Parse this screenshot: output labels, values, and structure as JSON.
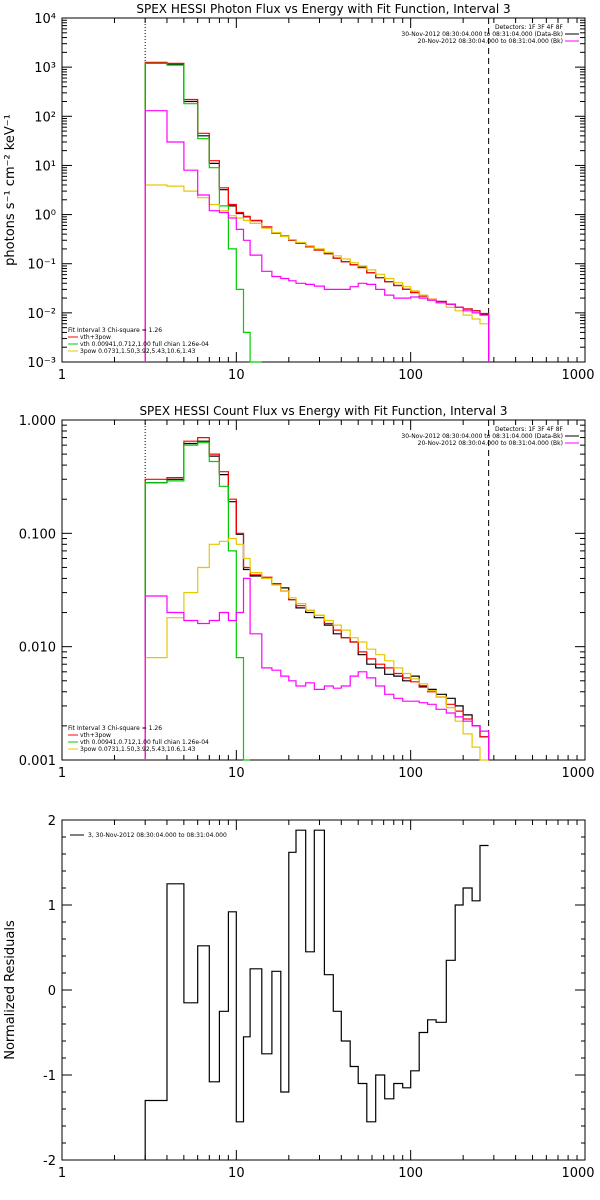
{
  "chart_data": [
    {
      "type": "line",
      "title": "SPEX HESSI Photon Flux vs Energy with Fit Function, Interval 3",
      "xlabel": "",
      "ylabel": "photons s⁻¹ cm⁻² keV⁻¹",
      "xscale": "log",
      "yscale": "log",
      "xlim": [
        1,
        1000
      ],
      "ylim": [
        0.001,
        10000
      ],
      "xticks": [
        1,
        10,
        100,
        1000
      ],
      "xtick_labels": [
        "1",
        "10",
        "100",
        "1000"
      ],
      "yticks": [
        0.001,
        0.01,
        0.1,
        1,
        10,
        100,
        1000,
        10000
      ],
      "ytick_labels": [
        "10⁻³",
        "10⁻²",
        "10⁻¹",
        "10⁰",
        "10¹",
        "10²",
        "10³",
        "10⁴"
      ],
      "vlines": [
        {
          "x": 3,
          "style": "dotted"
        },
        {
          "x": 280,
          "style": "dashed"
        }
      ],
      "legend_topright": [
        "Detectors: 1F 3F 4F 8F",
        "30-Nov-2012 08:30:04.000 to 08:31:04.000 (Data-Bk)",
        "20-Nov-2012 08:30:04.000 to 08:31:04.000 (Bk)"
      ],
      "legend_topright_colors": [
        "",
        "#000000",
        "#ff00ff"
      ],
      "legend_bottomleft": [
        "Fit Interval 3   Chi-square = 1.26",
        "vth+3pow",
        "vth 0.00941,0.712,1.00  full chian 1.26e-04",
        "3pow 0.0731,1.50,3.92,5.43,10.6,1.43"
      ],
      "legend_bottomleft_colors": [
        "",
        "#ff0000",
        "#00cc00",
        "#e6c800"
      ],
      "series": [
        {
          "color": "#000000",
          "x": [
            3,
            4,
            5,
            6,
            7,
            8,
            9,
            10,
            11,
            12,
            14,
            16,
            18,
            20,
            22,
            25,
            28,
            32,
            36,
            40,
            45,
            50,
            56,
            63,
            71,
            80,
            90,
            100,
            112,
            125,
            140,
            160,
            180,
            200,
            225,
            250,
            280
          ],
          "y": [
            1200,
            1150,
            200,
            40,
            11,
            3.2,
            1.5,
            1.05,
            0.9,
            0.75,
            0.55,
            0.42,
            0.36,
            0.3,
            0.26,
            0.22,
            0.19,
            0.16,
            0.13,
            0.11,
            0.095,
            0.085,
            0.065,
            0.052,
            0.043,
            0.036,
            0.03,
            0.026,
            0.022,
            0.019,
            0.017,
            0.015,
            0.013,
            0.012,
            0.011,
            0.0095,
            null
          ]
        },
        {
          "color": "#ff0000",
          "x": [
            3,
            4,
            5,
            6,
            7,
            8,
            9,
            10,
            11,
            12,
            14,
            16,
            18,
            20,
            22,
            25,
            28,
            32,
            36,
            40,
            45,
            50,
            56,
            63,
            71,
            80,
            90,
            100,
            112,
            125,
            140,
            160,
            180,
            200,
            225,
            250,
            280
          ],
          "y": [
            1250,
            1200,
            220,
            45,
            12.5,
            3.5,
            1.6,
            1.1,
            0.92,
            0.76,
            0.56,
            0.43,
            0.37,
            0.3,
            0.26,
            0.22,
            0.19,
            0.16,
            0.13,
            0.11,
            0.095,
            0.083,
            0.065,
            0.052,
            0.043,
            0.036,
            0.03,
            0.026,
            0.022,
            0.019,
            0.017,
            0.015,
            0.013,
            0.012,
            0.011,
            0.0097,
            null
          ]
        },
        {
          "color": "#00cc00",
          "x": [
            3,
            4,
            5,
            6,
            7,
            8,
            9,
            10,
            11,
            12,
            14
          ],
          "y": [
            1200,
            1100,
            180,
            35,
            9,
            1.5,
            0.2,
            0.03,
            0.004,
            0.0009,
            null
          ]
        },
        {
          "color": "#e6c800",
          "x": [
            3,
            4,
            5,
            6,
            7,
            8,
            9,
            10,
            11,
            12,
            14,
            16,
            18,
            20,
            22,
            25,
            28,
            32,
            36,
            40,
            45,
            50,
            56,
            63,
            71,
            80,
            90,
            100,
            112,
            125,
            140,
            160,
            180,
            200,
            225,
            250,
            280
          ],
          "y": [
            4,
            3.8,
            3,
            2.2,
            1.6,
            1.2,
            0.95,
            0.85,
            0.76,
            0.66,
            0.53,
            0.43,
            0.36,
            0.31,
            0.27,
            0.23,
            0.2,
            0.17,
            0.145,
            0.125,
            0.105,
            0.09,
            0.075,
            0.061,
            0.05,
            0.041,
            0.034,
            0.028,
            0.023,
            0.019,
            0.016,
            0.013,
            0.011,
            0.009,
            0.0075,
            0.006,
            null
          ]
        },
        {
          "color": "#ff00ff",
          "x": [
            3,
            4,
            5,
            6,
            7,
            8,
            9,
            10,
            11,
            12,
            14,
            16,
            18,
            20,
            22,
            25,
            28,
            32,
            36,
            40,
            45,
            50,
            56,
            63,
            71,
            80,
            90,
            100,
            112,
            125,
            140,
            160,
            180,
            200,
            225,
            250,
            280
          ],
          "y": [
            130,
            30,
            8,
            2.5,
            1.2,
            1.1,
            0.85,
            0.5,
            0.3,
            0.15,
            0.07,
            0.055,
            0.05,
            0.045,
            0.04,
            0.038,
            0.035,
            0.03,
            0.03,
            0.03,
            0.034,
            0.04,
            0.038,
            0.03,
            0.023,
            0.02,
            0.02,
            0.021,
            0.02,
            0.018,
            0.016,
            0.015,
            0.013,
            0.011,
            0.01,
            0.009,
            null
          ]
        }
      ]
    },
    {
      "type": "line",
      "title": "SPEX HESSI Count Flux vs Energy with Fit Function, Interval 3",
      "xlabel": "",
      "ylabel": "",
      "xscale": "log",
      "yscale": "log",
      "xlim": [
        1,
        1000
      ],
      "ylim": [
        0.001,
        1.0
      ],
      "xticks": [
        1,
        10,
        100,
        1000
      ],
      "xtick_labels": [
        "1",
        "10",
        "100",
        "1000"
      ],
      "yticks": [
        0.001,
        0.01,
        0.1,
        1.0
      ],
      "ytick_labels": [
        "0.001",
        "0.010",
        "0.100",
        "1.000"
      ],
      "vlines": [
        {
          "x": 3,
          "style": "dotted"
        },
        {
          "x": 280,
          "style": "dashed"
        }
      ],
      "legend_topright": [
        "Detectors: 1F 3F 4F 8F",
        "30-Nov-2012 08:30:04.000 to 08:31:04.000 (Data-Bk)",
        "20-Nov-2012 08:30:04.000 to 08:31:04.000 (Bk)"
      ],
      "legend_topright_colors": [
        "",
        "#000000",
        "#ff00ff"
      ],
      "legend_bottomleft": [
        "Fit Interval 3   Chi-square = 1.26",
        "vth+3pow",
        "vth 0.00941,0.712,1.00  full chian 1.26e-04",
        "3pow 0.0731,1.50,3.92,5.43,10.6,1.43"
      ],
      "legend_bottomleft_colors": [
        "",
        "#ff0000",
        "#00cc00",
        "#e6c800"
      ],
      "series": [
        {
          "color": "#000000",
          "x": [
            3,
            4,
            5,
            6,
            7,
            8,
            9,
            10,
            11,
            12,
            14,
            16,
            18,
            20,
            22,
            25,
            28,
            32,
            36,
            40,
            45,
            50,
            56,
            63,
            71,
            80,
            90,
            100,
            112,
            125,
            140,
            160,
            180,
            200,
            225,
            250,
            280
          ],
          "y": [
            0.28,
            0.3,
            0.62,
            0.65,
            0.48,
            0.33,
            0.19,
            0.098,
            0.048,
            0.042,
            0.04,
            0.036,
            0.033,
            0.026,
            0.022,
            0.02,
            0.018,
            0.0155,
            0.013,
            0.012,
            0.011,
            0.0085,
            0.007,
            0.0065,
            0.0057,
            0.0055,
            0.005,
            0.0055,
            0.0045,
            0.0042,
            0.0038,
            0.0035,
            0.003,
            0.0025,
            0.002,
            0.0016,
            null
          ]
        },
        {
          "color": "#ff0000",
          "x": [
            3,
            4,
            5,
            6,
            7,
            8,
            9,
            10,
            11,
            12,
            14,
            16,
            18,
            20,
            22,
            25,
            28,
            32,
            36,
            40,
            45,
            50,
            56,
            63,
            71,
            80,
            90,
            100,
            112,
            125,
            140,
            160,
            180,
            200,
            225,
            250,
            280
          ],
          "y": [
            0.3,
            0.31,
            0.65,
            0.7,
            0.5,
            0.35,
            0.2,
            0.1,
            0.05,
            0.043,
            0.041,
            0.036,
            0.031,
            0.026,
            0.023,
            0.021,
            0.019,
            0.016,
            0.014,
            0.012,
            0.011,
            0.009,
            0.0078,
            0.007,
            0.0065,
            0.0058,
            0.0053,
            0.0049,
            0.0044,
            0.004,
            0.0036,
            0.0031,
            0.0027,
            0.0023,
            0.002,
            0.0016,
            null
          ]
        },
        {
          "color": "#00cc00",
          "x": [
            3,
            4,
            5,
            6,
            7,
            8,
            9,
            10,
            11,
            12
          ],
          "y": [
            0.28,
            0.29,
            0.6,
            0.63,
            0.43,
            0.26,
            0.07,
            0.008,
            0.0006,
            null
          ]
        },
        {
          "color": "#e6c800",
          "x": [
            3,
            4,
            5,
            6,
            7,
            8,
            9,
            10,
            11,
            12,
            14,
            16,
            18,
            20,
            22,
            25,
            28,
            32,
            36,
            40,
            45,
            50,
            56,
            63,
            71,
            80,
            90,
            100,
            112,
            125,
            140,
            160,
            180,
            200,
            225,
            250,
            280
          ],
          "y": [
            0.008,
            0.018,
            0.03,
            0.05,
            0.08,
            0.085,
            0.09,
            0.08,
            0.06,
            0.045,
            0.04,
            0.035,
            0.031,
            0.027,
            0.024,
            0.021,
            0.019,
            0.017,
            0.0155,
            0.014,
            0.012,
            0.011,
            0.0095,
            0.0085,
            0.0075,
            0.0065,
            0.0058,
            0.0052,
            0.0047,
            0.0041,
            0.0036,
            0.0029,
            0.0022,
            0.0017,
            0.0013,
            0.001,
            null
          ]
        },
        {
          "color": "#ff00ff",
          "x": [
            3,
            4,
            5,
            6,
            7,
            8,
            9,
            10,
            11,
            12,
            14,
            16,
            18,
            20,
            22,
            25,
            28,
            32,
            36,
            40,
            45,
            50,
            56,
            63,
            71,
            80,
            90,
            100,
            112,
            125,
            140,
            160,
            180,
            200,
            225,
            250,
            280
          ],
          "y": [
            0.028,
            0.02,
            0.017,
            0.016,
            0.017,
            0.02,
            0.017,
            0.02,
            0.04,
            0.013,
            0.0065,
            0.0062,
            0.0055,
            0.005,
            0.0045,
            0.0048,
            0.0042,
            0.0045,
            0.0043,
            0.0045,
            0.0055,
            0.006,
            0.0053,
            0.0045,
            0.0038,
            0.0035,
            0.0033,
            0.0033,
            0.0032,
            0.0031,
            0.0028,
            0.0026,
            0.0024,
            0.0022,
            0.002,
            0.0018,
            null
          ]
        }
      ]
    },
    {
      "type": "line",
      "title": "",
      "xlabel": "",
      "ylabel": "Normalized Residuals",
      "xscale": "log",
      "yscale": "linear",
      "xlim": [
        1,
        1000
      ],
      "ylim": [
        -2,
        2
      ],
      "xticks": [
        1,
        10,
        100,
        1000
      ],
      "xtick_labels": [
        "1",
        "10",
        "100",
        "1000"
      ],
      "yticks": [
        -2,
        -1,
        0,
        1,
        2
      ],
      "ytick_labels": [
        "-2",
        "-1",
        "0",
        "1",
        "2"
      ],
      "legend_topleft": [
        "3, 30-Nov-2012 08:30:04.000 to 08:31:04.000"
      ],
      "series": [
        {
          "color": "#000000",
          "x": [
            3,
            4,
            5,
            6,
            7,
            8,
            9,
            10,
            11,
            12,
            14,
            16,
            18,
            20,
            22,
            25,
            28,
            32,
            36,
            40,
            45,
            50,
            56,
            63,
            71,
            80,
            90,
            100,
            112,
            125,
            140,
            160,
            180,
            200,
            225,
            250,
            280
          ],
          "y": [
            -1.3,
            1.25,
            -0.15,
            0.52,
            -1.08,
            -0.25,
            0.92,
            -1.55,
            -0.55,
            0.25,
            -0.75,
            0.22,
            -1.2,
            1.62,
            1.88,
            0.45,
            1.88,
            0.18,
            -0.25,
            -0.6,
            -0.9,
            -1.1,
            -1.55,
            -1.0,
            -1.28,
            -1.1,
            -1.15,
            -0.95,
            -0.5,
            -0.35,
            -0.38,
            0.35,
            1.0,
            1.2,
            1.05,
            1.7,
            1.65
          ]
        }
      ]
    }
  ]
}
